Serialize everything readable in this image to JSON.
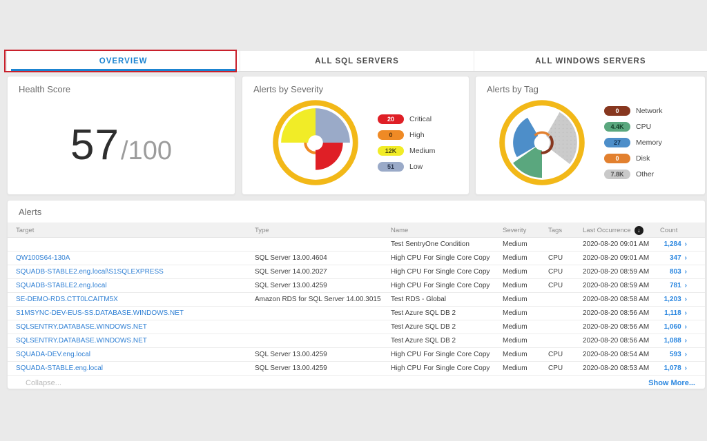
{
  "tabs": [
    {
      "label": "OVERVIEW",
      "active": true
    },
    {
      "label": "ALL SQL SERVERS",
      "active": false
    },
    {
      "label": "ALL WINDOWS SERVERS",
      "active": false
    }
  ],
  "cards": {
    "health": {
      "title": "Health Score",
      "score": "57",
      "denominator": "/100"
    },
    "severity": {
      "title": "Alerts by Severity",
      "legend": [
        {
          "label": "Critical",
          "value": "20",
          "pill_color": "#df1f26",
          "value_color": "#ffffff"
        },
        {
          "label": "High",
          "value": "0",
          "pill_color": "#ef8a25",
          "value_color": "#5a3208"
        },
        {
          "label": "Medium",
          "value": "12K",
          "pill_color": "#f1ec27",
          "value_color": "#4c4a10"
        },
        {
          "label": "Low",
          "value": "51",
          "pill_color": "#9aaac8",
          "value_color": "#2e3a52"
        }
      ]
    },
    "tags": {
      "title": "Alerts by Tag",
      "legend": [
        {
          "label": "Network",
          "value": "0",
          "pill_color": "#87371f",
          "value_color": "#ffffff"
        },
        {
          "label": "CPU",
          "value": "4.4K",
          "pill_color": "#5aa77e",
          "value_color": "#123c27"
        },
        {
          "label": "Memory",
          "value": "27",
          "pill_color": "#4d8ec9",
          "value_color": "#0f2f4e"
        },
        {
          "label": "Disk",
          "value": "0",
          "pill_color": "#e2802f",
          "value_color": "#ffffff"
        },
        {
          "label": "Other",
          "value": "7.8K",
          "pill_color": "#c9c9c9",
          "value_color": "#4c4c4c"
        }
      ]
    }
  },
  "chart_data": [
    {
      "type": "pie",
      "title": "Alerts by Severity",
      "categories": [
        "Critical",
        "High",
        "Medium",
        "Low"
      ],
      "values": [
        20,
        0,
        12000,
        51
      ],
      "value_labels": [
        "20",
        "0",
        "12K",
        "51"
      ],
      "colors": [
        "#df1f26",
        "#ef8a25",
        "#f1ec27",
        "#9aaac8"
      ],
      "legend_position": "right",
      "ring_color": "#f2b818"
    },
    {
      "type": "pie",
      "title": "Alerts by Tag",
      "categories": [
        "Network",
        "CPU",
        "Memory",
        "Disk",
        "Other"
      ],
      "values": [
        0,
        4400,
        27,
        0,
        7800
      ],
      "value_labels": [
        "0",
        "4.4K",
        "27",
        "0",
        "7.8K"
      ],
      "colors": [
        "#87371f",
        "#5aa77e",
        "#4d8ec9",
        "#e2802f",
        "#c9c9c9"
      ],
      "legend_position": "right",
      "ring_color": "#f2b818"
    }
  ],
  "alerts": {
    "title": "Alerts",
    "columns": [
      "Target",
      "Type",
      "Name",
      "Severity",
      "Tags",
      "Last Occurrence",
      "Count"
    ],
    "sort_icon": "↓",
    "rows": [
      {
        "target": "",
        "type": "",
        "name": "Test SentryOne Condition",
        "severity": "Medium",
        "tags": "",
        "last_occurrence": "2020-08-20 09:01 AM",
        "count": "1,284"
      },
      {
        "target": "QW100S64-130A",
        "type": "SQL Server 13.00.4604",
        "name": "High CPU For Single Core Copy",
        "severity": "Medium",
        "tags": "CPU",
        "last_occurrence": "2020-08-20 09:01 AM",
        "count": "347"
      },
      {
        "target": "SQUADB-STABLE2.eng.local\\S1SQLEXPRESS",
        "type": "SQL Server 14.00.2027",
        "name": "High CPU For Single Core Copy",
        "severity": "Medium",
        "tags": "CPU",
        "last_occurrence": "2020-08-20 08:59 AM",
        "count": "803"
      },
      {
        "target": "SQUADB-STABLE2.eng.local",
        "type": "SQL Server 13.00.4259",
        "name": "High CPU For Single Core Copy",
        "severity": "Medium",
        "tags": "CPU",
        "last_occurrence": "2020-08-20 08:59 AM",
        "count": "781"
      },
      {
        "target": "SE-DEMO-RDS.CTT0LCAITM5X",
        "type": "Amazon RDS for SQL Server 14.00.3015",
        "name": "Test RDS - Global",
        "severity": "Medium",
        "tags": "",
        "last_occurrence": "2020-08-20 08:58 AM",
        "count": "1,203"
      },
      {
        "target": "S1MSYNC-DEV-EUS-SS.DATABASE.WINDOWS.NET",
        "type": "",
        "name": "Test Azure SQL DB 2",
        "severity": "Medium",
        "tags": "",
        "last_occurrence": "2020-08-20 08:56 AM",
        "count": "1,118"
      },
      {
        "target": "SQLSENTRY.DATABASE.WINDOWS.NET",
        "type": "",
        "name": "Test Azure SQL DB 2",
        "severity": "Medium",
        "tags": "",
        "last_occurrence": "2020-08-20 08:56 AM",
        "count": "1,060"
      },
      {
        "target": "SQLSENTRY.DATABASE.WINDOWS.NET",
        "type": "",
        "name": "Test Azure SQL DB 2",
        "severity": "Medium",
        "tags": "",
        "last_occurrence": "2020-08-20 08:56 AM",
        "count": "1,088"
      },
      {
        "target": "SQUADA-DEV.eng.local",
        "type": "SQL Server 13.00.4259",
        "name": "High CPU For Single Core Copy",
        "severity": "Medium",
        "tags": "CPU",
        "last_occurrence": "2020-08-20 08:54 AM",
        "count": "593"
      },
      {
        "target": "SQUADA-STABLE.eng.local",
        "type": "SQL Server 13.00.4259",
        "name": "High CPU For Single Core Copy",
        "severity": "Medium",
        "tags": "CPU",
        "last_occurrence": "2020-08-20 08:53 AM",
        "count": "1,078"
      }
    ],
    "footer": {
      "collapse": "Collapse...",
      "show_more": "Show More..."
    }
  }
}
